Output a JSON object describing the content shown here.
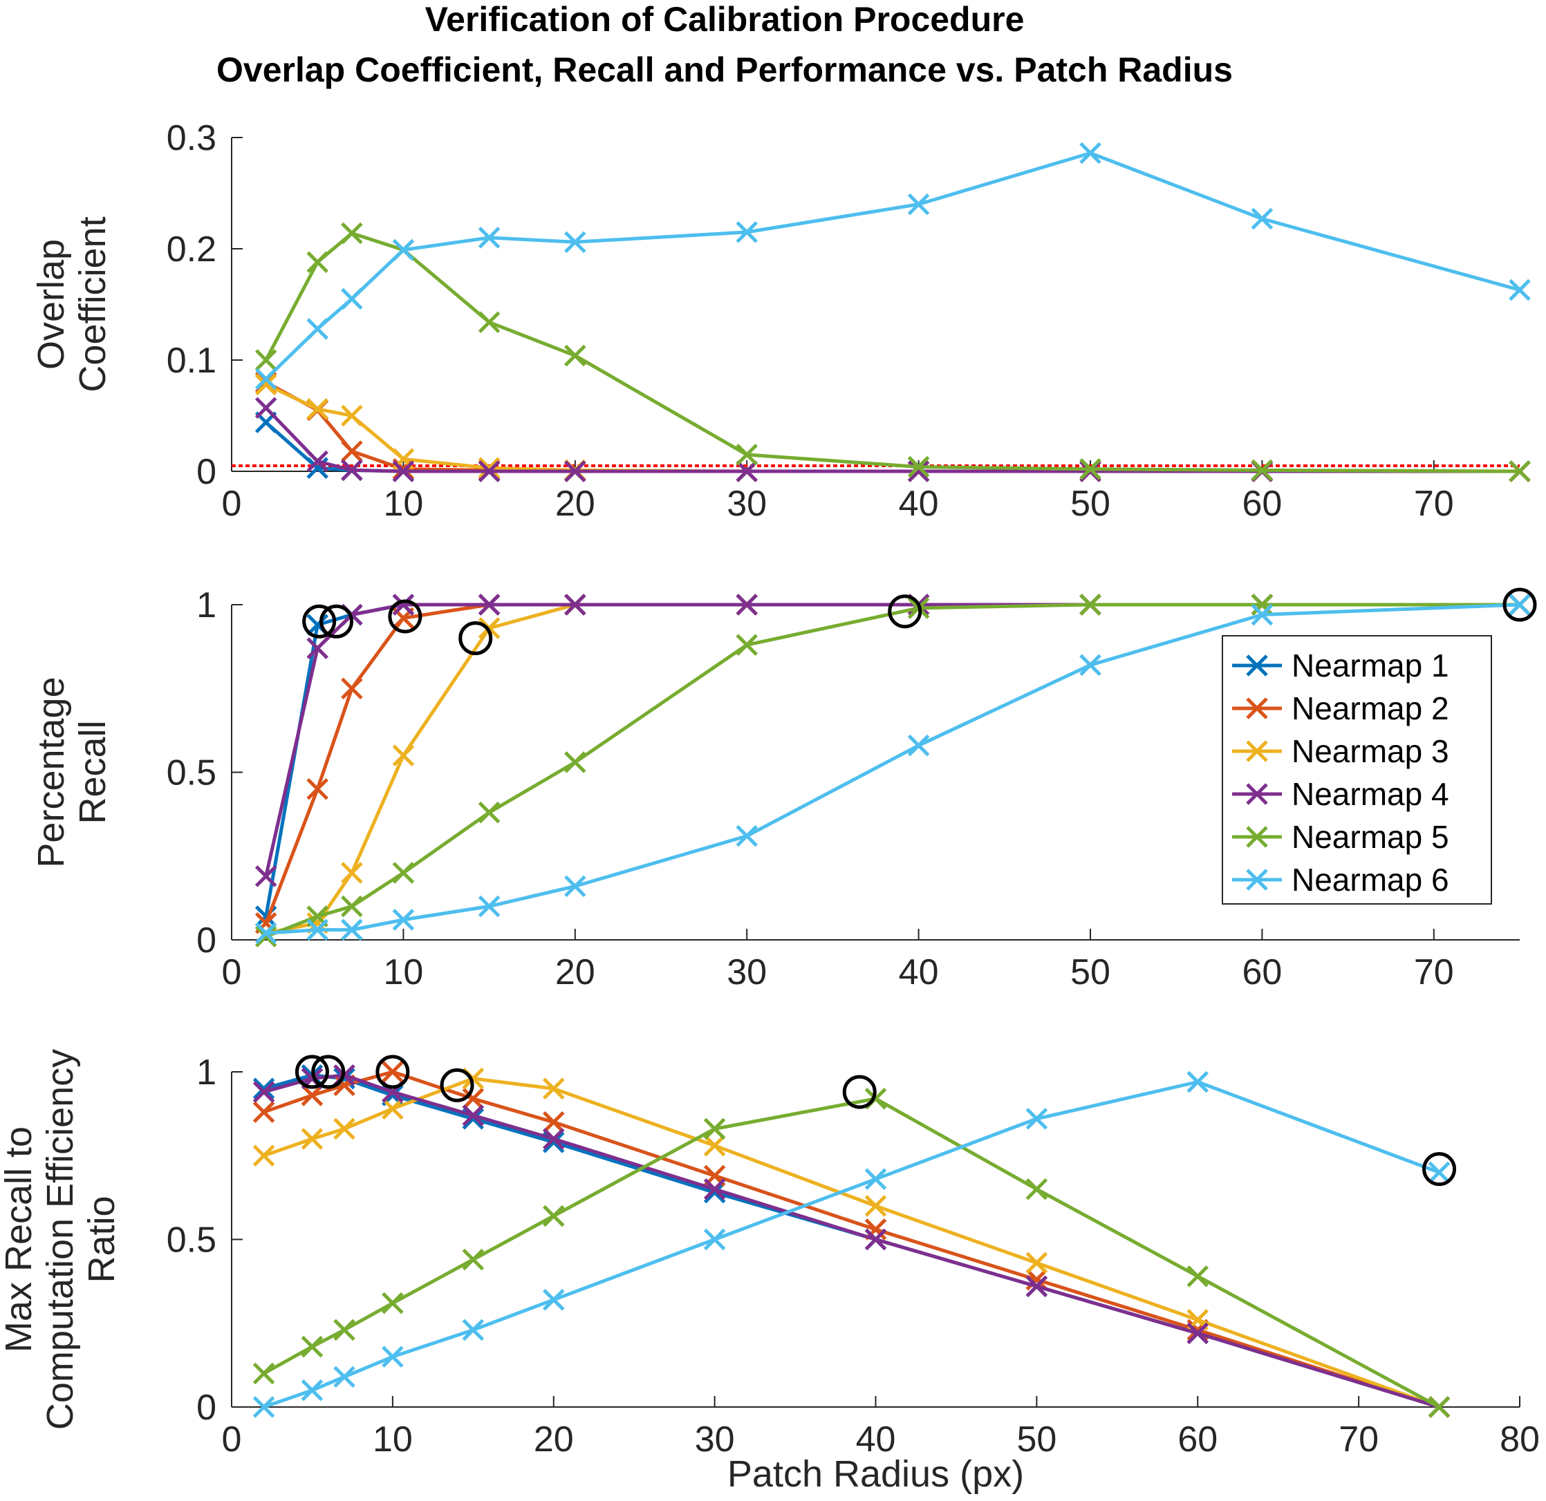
{
  "figure": {
    "title_line1": "Verification of Calibration Procedure",
    "title_line2": "Overlap Coefficient, Recall and Performance vs. Patch Radius"
  },
  "threshold": {
    "value": 0.005,
    "color": "#ff0000"
  },
  "series_styles": [
    {
      "name": "Nearmap 1",
      "color": "#0072BD"
    },
    {
      "name": "Nearmap 2",
      "color": "#D95319"
    },
    {
      "name": "Nearmap 3",
      "color": "#EDB120"
    },
    {
      "name": "Nearmap 4",
      "color": "#7E2F8E"
    },
    {
      "name": "Nearmap 5",
      "color": "#77AC30"
    },
    {
      "name": "Nearmap 6",
      "color": "#4DBEEE"
    }
  ],
  "chart_data": [
    {
      "type": "line",
      "title": "Overlap Coefficient",
      "ylabel": [
        "Overlap",
        "Coefficient"
      ],
      "xlabel": "",
      "xlim": [
        0,
        75
      ],
      "ylim": [
        0,
        0.3
      ],
      "xticks": [
        "0",
        "10",
        "20",
        "30",
        "40",
        "50",
        "60",
        "70"
      ],
      "yticks": [
        "0",
        "0.1",
        "0.2",
        "0.3"
      ],
      "series": [
        {
          "name": "Nearmap 1",
          "x": [
            2,
            5,
            7,
            10,
            15,
            20,
            30,
            40,
            50,
            60,
            75
          ],
          "values": [
            0.044,
            0.003,
            0.001,
            0,
            0,
            0,
            0,
            0,
            0,
            0,
            0
          ]
        },
        {
          "name": "Nearmap 2",
          "x": [
            2,
            5,
            7,
            10,
            15,
            20,
            30,
            40,
            50,
            60,
            75
          ],
          "values": [
            0.08,
            0.055,
            0.018,
            0.002,
            0.001,
            0,
            0,
            0,
            0,
            0,
            0
          ]
        },
        {
          "name": "Nearmap 3",
          "x": [
            2,
            5,
            7,
            10,
            15,
            20,
            30,
            40,
            50,
            60,
            75
          ],
          "values": [
            0.078,
            0.056,
            0.05,
            0.011,
            0.003,
            0.001,
            0,
            0,
            0,
            0,
            0
          ]
        },
        {
          "name": "Nearmap 4",
          "x": [
            2,
            5,
            7,
            10,
            15,
            20,
            30,
            40,
            50,
            60,
            75
          ],
          "values": [
            0.057,
            0.009,
            0.001,
            0,
            0,
            0,
            0,
            0,
            0,
            0,
            0
          ]
        },
        {
          "name": "Nearmap 5",
          "x": [
            2,
            5,
            7,
            10,
            15,
            20,
            30,
            40,
            50,
            60,
            75
          ],
          "values": [
            0.1,
            0.188,
            0.214,
            0.199,
            0.134,
            0.104,
            0.015,
            0.004,
            0.002,
            0.001,
            0
          ]
        },
        {
          "name": "Nearmap 6",
          "x": [
            2,
            5,
            7,
            10,
            15,
            20,
            30,
            40,
            50,
            60,
            75
          ],
          "values": [
            0.083,
            0.128,
            0.155,
            0.199,
            0.21,
            0.206,
            0.215,
            0.24,
            0.286,
            0.227,
            0.163
          ]
        }
      ]
    },
    {
      "type": "line",
      "title": "Percentage Recall",
      "ylabel": [
        "Percentage",
        "Recall"
      ],
      "xlabel": "",
      "xlim": [
        0,
        75
      ],
      "ylim": [
        0,
        1
      ],
      "xticks": [
        "0",
        "10",
        "20",
        "30",
        "40",
        "50",
        "60",
        "70"
      ],
      "yticks": [
        "0",
        "0.5",
        "1"
      ],
      "legend": {
        "position": "center-right",
        "entries": [
          "Nearmap 1",
          "Nearmap 2",
          "Nearmap 3",
          "Nearmap 4",
          "Nearmap 5",
          "Nearmap 6"
        ]
      },
      "series": [
        {
          "name": "Nearmap 1",
          "x": [
            2,
            5,
            7,
            10,
            15,
            20,
            30,
            40,
            50,
            60,
            75
          ],
          "values": [
            0.07,
            0.94,
            0.97,
            1,
            1,
            1,
            1,
            1,
            1,
            1,
            1
          ]
        },
        {
          "name": "Nearmap 2",
          "x": [
            2,
            5,
            7,
            10,
            15,
            20,
            30,
            40,
            50,
            60,
            75
          ],
          "values": [
            0.05,
            0.45,
            0.75,
            0.96,
            1,
            1,
            1,
            1,
            1,
            1,
            1
          ]
        },
        {
          "name": "Nearmap 3",
          "x": [
            2,
            5,
            7,
            10,
            15,
            20,
            30,
            40,
            50,
            60,
            75
          ],
          "values": [
            0.02,
            0.05,
            0.2,
            0.55,
            0.93,
            1,
            1,
            1,
            1,
            1,
            1
          ]
        },
        {
          "name": "Nearmap 4",
          "x": [
            2,
            5,
            7,
            10,
            15,
            20,
            30,
            40,
            50,
            60,
            75
          ],
          "values": [
            0.19,
            0.87,
            0.97,
            1,
            1,
            1,
            1,
            1,
            1,
            1,
            1
          ]
        },
        {
          "name": "Nearmap 5",
          "x": [
            2,
            5,
            7,
            10,
            15,
            20,
            30,
            40,
            50,
            60,
            75
          ],
          "values": [
            0.01,
            0.07,
            0.1,
            0.2,
            0.38,
            0.53,
            0.88,
            0.99,
            1,
            1,
            1
          ]
        },
        {
          "name": "Nearmap 6",
          "x": [
            2,
            5,
            7,
            10,
            15,
            20,
            30,
            40,
            50,
            60,
            75
          ],
          "values": [
            0.02,
            0.03,
            0.03,
            0.06,
            0.1,
            0.16,
            0.31,
            0.58,
            0.82,
            0.97,
            1
          ]
        }
      ],
      "markers": [
        {
          "series": "Nearmap 1",
          "x": 5.1,
          "y": 0.95
        },
        {
          "series": "Nearmap 4",
          "x": 6.1,
          "y": 0.95
        },
        {
          "series": "Nearmap 2",
          "x": 10.1,
          "y": 0.965
        },
        {
          "series": "Nearmap 3",
          "x": 14.2,
          "y": 0.9
        },
        {
          "series": "Nearmap 5",
          "x": 39.2,
          "y": 0.98
        },
        {
          "series": "Nearmap 6",
          "x": 75,
          "y": 1.0
        }
      ]
    },
    {
      "type": "line",
      "title": "Max Recall to Computation Efficiency Ratio",
      "ylabel": [
        "Max Recall to",
        "Computation Efficiency",
        "Ratio"
      ],
      "xlabel": "Patch Radius (px)",
      "xlim": [
        0,
        80
      ],
      "ylim": [
        0,
        1
      ],
      "xticks": [
        "0",
        "10",
        "20",
        "30",
        "40",
        "50",
        "60",
        "70",
        "80"
      ],
      "yticks": [
        "0",
        "0.5",
        "1"
      ],
      "series": [
        {
          "name": "Nearmap 1",
          "x": [
            2,
            5,
            7,
            10,
            15,
            20,
            30,
            40,
            50,
            60,
            75
          ],
          "values": [
            0.95,
            0.99,
            0.98,
            0.93,
            0.86,
            0.79,
            0.64,
            0.5,
            0.36,
            0.22,
            0
          ]
        },
        {
          "name": "Nearmap 2",
          "x": [
            2,
            5,
            7,
            10,
            15,
            20,
            30,
            40,
            50,
            60,
            75
          ],
          "values": [
            0.88,
            0.93,
            0.96,
            1,
            0.92,
            0.85,
            0.69,
            0.53,
            0.38,
            0.23,
            0
          ]
        },
        {
          "name": "Nearmap 3",
          "x": [
            2,
            5,
            7,
            10,
            15,
            20,
            30,
            40,
            50,
            60,
            75
          ],
          "values": [
            0.75,
            0.8,
            0.83,
            0.89,
            0.98,
            0.95,
            0.78,
            0.6,
            0.43,
            0.26,
            0
          ]
        },
        {
          "name": "Nearmap 4",
          "x": [
            2,
            5,
            7,
            10,
            15,
            20,
            30,
            40,
            50,
            60,
            75
          ],
          "values": [
            0.94,
            0.98,
            0.99,
            0.94,
            0.87,
            0.8,
            0.65,
            0.5,
            0.36,
            0.22,
            0
          ]
        },
        {
          "name": "Nearmap 5",
          "x": [
            2,
            5,
            7,
            10,
            15,
            20,
            30,
            40,
            50,
            60,
            75
          ],
          "values": [
            0.1,
            0.18,
            0.23,
            0.31,
            0.44,
            0.57,
            0.83,
            0.92,
            0.65,
            0.39,
            0
          ]
        },
        {
          "name": "Nearmap 6",
          "x": [
            2,
            5,
            7,
            10,
            15,
            20,
            30,
            40,
            50,
            60,
            75
          ],
          "values": [
            0,
            0.05,
            0.09,
            0.15,
            0.23,
            0.32,
            0.5,
            0.68,
            0.86,
            0.97,
            0.7
          ]
        }
      ],
      "markers": [
        {
          "series": "Nearmap 1",
          "x": 5,
          "y": 1.0
        },
        {
          "series": "Nearmap 4",
          "x": 6,
          "y": 1.0
        },
        {
          "series": "Nearmap 2",
          "x": 10,
          "y": 1.0
        },
        {
          "series": "Nearmap 3",
          "x": 14,
          "y": 0.96
        },
        {
          "series": "Nearmap 5",
          "x": 39,
          "y": 0.94
        },
        {
          "series": "Nearmap 6",
          "x": 75,
          "y": 0.71
        }
      ]
    }
  ]
}
